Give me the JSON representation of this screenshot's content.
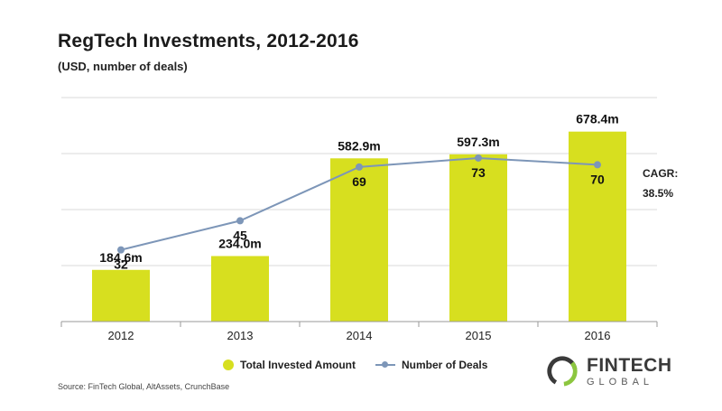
{
  "title": "RegTech Investments, 2012-2016",
  "subtitle": "(USD, number of deals)",
  "source": "Source: FinTech Global, AltAssets, CrunchBase",
  "cagr": {
    "label": "CAGR:",
    "value": "38.5%"
  },
  "logo": {
    "line1": "FINTECH",
    "line2": "GLOBAL"
  },
  "colors": {
    "bar": "#d7df1f",
    "line": "#7d96b8",
    "grid": "#d9d9d9",
    "axis": "#9a9a9a",
    "logo_green": "#8cc63f"
  },
  "chart_data": {
    "type": "bar",
    "categories": [
      "2012",
      "2013",
      "2014",
      "2015",
      "2016"
    ],
    "series": [
      {
        "name": "Total Invested Amount",
        "type": "bar",
        "values": [
          184.6,
          234.0,
          582.9,
          597.3,
          678.4
        ],
        "labels": [
          "184.6m",
          "234.0m",
          "582.9m",
          "597.3m",
          "678.4m"
        ]
      },
      {
        "name": "Number of Deals",
        "type": "line",
        "values": [
          32,
          45,
          69,
          73,
          70
        ],
        "labels": [
          "32",
          "45",
          "69",
          "73",
          "70"
        ]
      }
    ],
    "ylim": [
      0,
      800
    ],
    "ylim_right": [
      0,
      100
    ],
    "grid": true,
    "legend": "bottom"
  }
}
